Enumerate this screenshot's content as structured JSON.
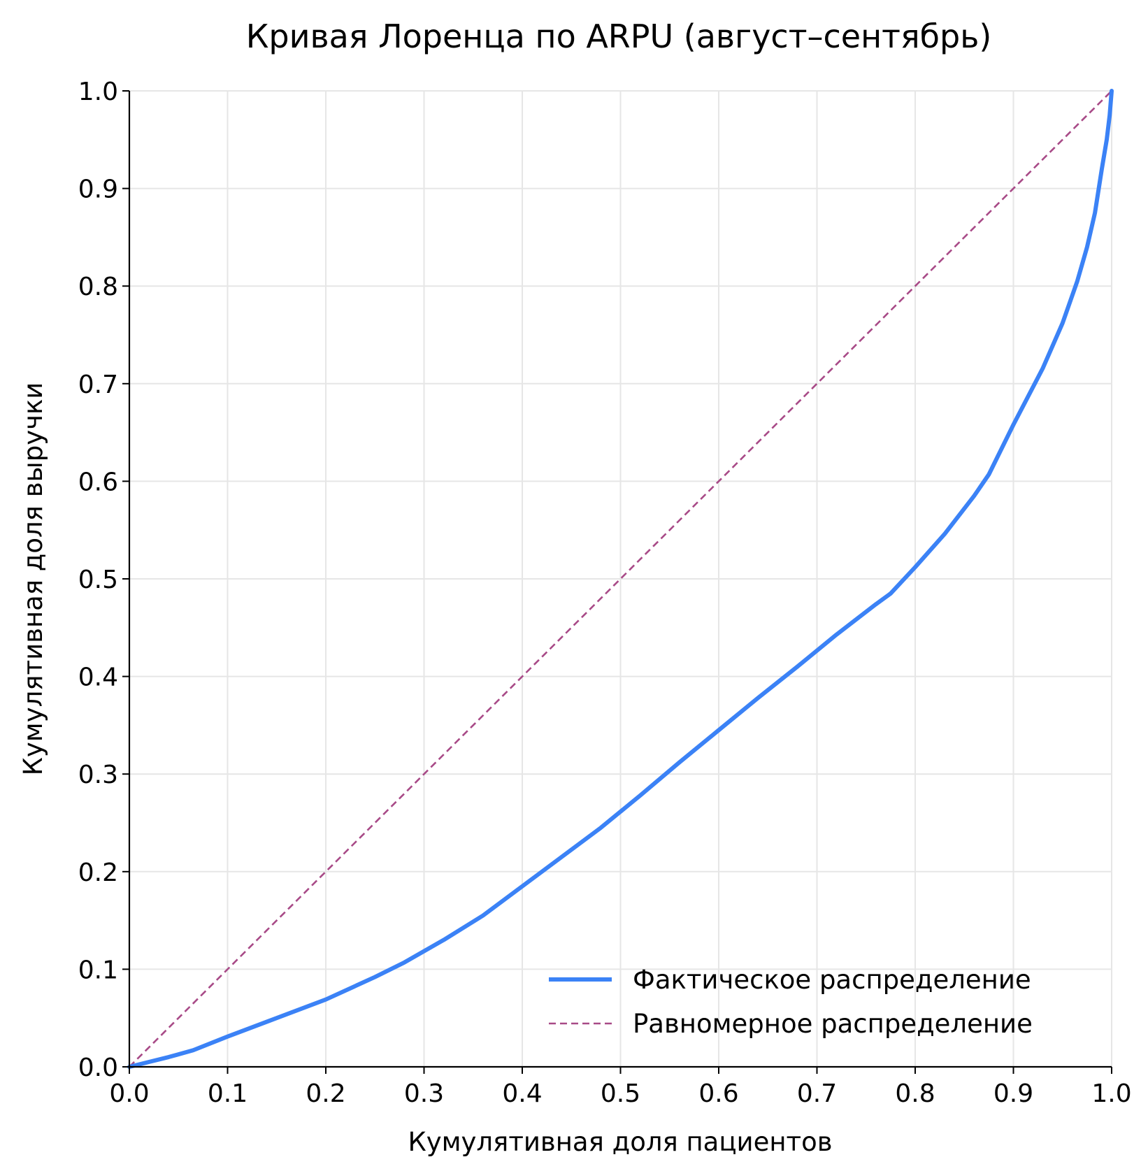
{
  "chart_data": {
    "type": "line",
    "title": "Кривая Лоренца по ARPU (август–сентябрь)",
    "xlabel": "Кумулятивная доля пациентов",
    "ylabel": "Кумулятивная доля выручки",
    "xlim": [
      0.0,
      1.0
    ],
    "ylim": [
      0.0,
      1.0
    ],
    "xticks": [
      "0.0",
      "0.1",
      "0.2",
      "0.3",
      "0.4",
      "0.5",
      "0.6",
      "0.7",
      "0.8",
      "0.9",
      "1.0"
    ],
    "yticks": [
      "0.0",
      "0.1",
      "0.2",
      "0.3",
      "0.4",
      "0.5",
      "0.6",
      "0.7",
      "0.8",
      "0.9",
      "1.0"
    ],
    "grid": true,
    "legend_position": "lower-right",
    "series": [
      {
        "name": "Фактическое распределение",
        "style": "solid",
        "color": "#3b82f6",
        "x": [
          0.0,
          0.02,
          0.04,
          0.065,
          0.1,
          0.15,
          0.2,
          0.25,
          0.28,
          0.32,
          0.36,
          0.4,
          0.44,
          0.48,
          0.52,
          0.56,
          0.6,
          0.64,
          0.68,
          0.72,
          0.76,
          0.775,
          0.8,
          0.83,
          0.86,
          0.875,
          0.9,
          0.93,
          0.95,
          0.965,
          0.975,
          0.983,
          0.99,
          0.995,
          0.998,
          1.0
        ],
        "y": [
          0.0,
          0.005,
          0.01,
          0.017,
          0.031,
          0.05,
          0.069,
          0.092,
          0.107,
          0.13,
          0.155,
          0.185,
          0.215,
          0.245,
          0.278,
          0.312,
          0.345,
          0.378,
          0.41,
          0.443,
          0.474,
          0.485,
          0.512,
          0.546,
          0.585,
          0.607,
          0.658,
          0.716,
          0.762,
          0.805,
          0.84,
          0.875,
          0.92,
          0.95,
          0.975,
          1.0
        ]
      },
      {
        "name": "Равномерное распределение",
        "style": "dashed",
        "color": "#a84a87",
        "x": [
          0.0,
          1.0
        ],
        "y": [
          0.0,
          1.0
        ]
      }
    ]
  },
  "colors": {
    "grid": "#e6e6e6",
    "axis": "#000000"
  }
}
